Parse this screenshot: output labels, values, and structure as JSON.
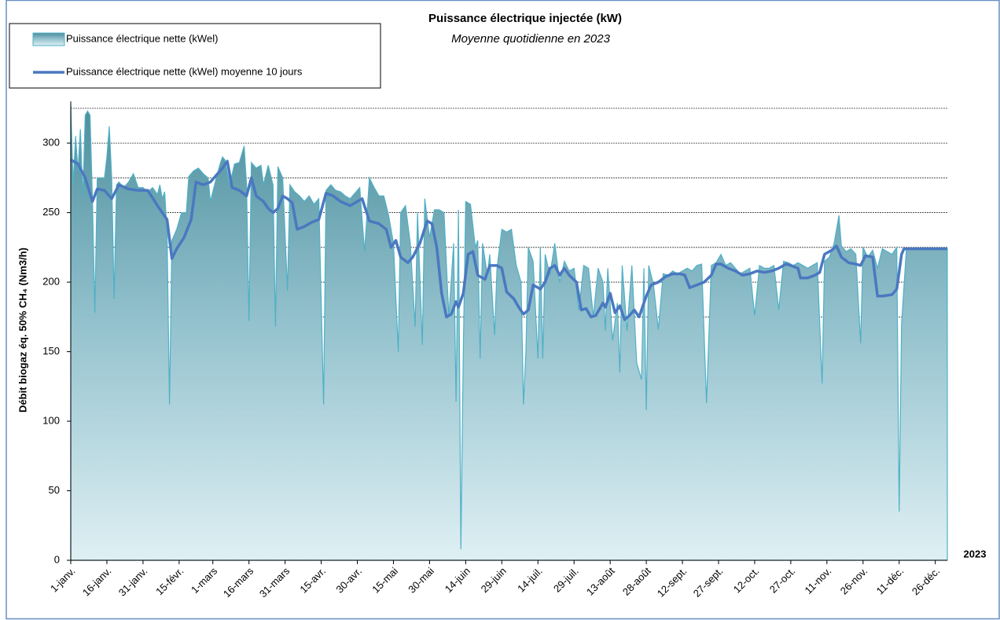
{
  "chart_data": {
    "type": "area",
    "title": "Puissance électrique injectée (kW)",
    "subtitle": "Moyenne quotidienne en 2023",
    "y_label": "Débit biogaz éq. 50% CH₄ (Nm3/h)",
    "x_label": "2023",
    "legend": "top-left",
    "ylim": [
      0,
      330
    ],
    "yticks": [
      0,
      50,
      100,
      150,
      200,
      250,
      300
    ],
    "gridlines": [
      175,
      200,
      225,
      250,
      275,
      300,
      325
    ],
    "xlim": [
      0,
      364
    ],
    "xticks": [
      {
        "value": 0,
        "label": "1-janv."
      },
      {
        "value": 15,
        "label": "16-janv."
      },
      {
        "value": 30,
        "label": "31-janv."
      },
      {
        "value": 45,
        "label": "15-févr."
      },
      {
        "value": 59,
        "label": "1-mars"
      },
      {
        "value": 74,
        "label": "16-mars"
      },
      {
        "value": 89,
        "label": "31-mars"
      },
      {
        "value": 104,
        "label": "15-avr."
      },
      {
        "value": 119,
        "label": "30-avr."
      },
      {
        "value": 134,
        "label": "15-mai"
      },
      {
        "value": 149,
        "label": "30-mai"
      },
      {
        "value": 164,
        "label": "14-juin"
      },
      {
        "value": 179,
        "label": "29-juin"
      },
      {
        "value": 194,
        "label": "14-juil."
      },
      {
        "value": 209,
        "label": "29-juil."
      },
      {
        "value": 224,
        "label": "13-août"
      },
      {
        "value": 239,
        "label": "28-août"
      },
      {
        "value": 254,
        "label": "12-sept."
      },
      {
        "value": 269,
        "label": "27-sept."
      },
      {
        "value": 284,
        "label": "12-oct."
      },
      {
        "value": 299,
        "label": "27-oct."
      },
      {
        "value": 314,
        "label": "11-nov."
      },
      {
        "value": 329,
        "label": "26-nov."
      },
      {
        "value": 344,
        "label": "11-déc."
      },
      {
        "value": 359,
        "label": "26-déc."
      }
    ],
    "series": [
      {
        "name": "Puissance électrique nette (kWel)",
        "kind": "area",
        "color": "#4fb0c6",
        "x": [
          0,
          1,
          2,
          3,
          4,
          5,
          6,
          7,
          8,
          9,
          10,
          11,
          12,
          13,
          14,
          15,
          16,
          17,
          18,
          19,
          20,
          22,
          24,
          26,
          28,
          30,
          32,
          34,
          36,
          37,
          38,
          39,
          40,
          41,
          42,
          44,
          46,
          48,
          49,
          51,
          53,
          55,
          57,
          58,
          60,
          62,
          63,
          64,
          66,
          68,
          70,
          72,
          73,
          74,
          75,
          77,
          79,
          80,
          82,
          84,
          85,
          86,
          88,
          90,
          91,
          93,
          95,
          97,
          99,
          101,
          103,
          105,
          106,
          108,
          110,
          112,
          114,
          116,
          118,
          120,
          122,
          124,
          126,
          128,
          130,
          132,
          134,
          136,
          137,
          139,
          141,
          143,
          144,
          146,
          147,
          149,
          151,
          153,
          155,
          157,
          159,
          160,
          161,
          162,
          163,
          164,
          166,
          168,
          169,
          170,
          171,
          173,
          174,
          176,
          177,
          179,
          181,
          183,
          185,
          187,
          188,
          189,
          190,
          192,
          194,
          195,
          196,
          197,
          199,
          201,
          203,
          205,
          207,
          209,
          211,
          213,
          215,
          217,
          219,
          221,
          222,
          223,
          225,
          227,
          228,
          229,
          231,
          233,
          235,
          237,
          238,
          239,
          240,
          242,
          244,
          246,
          248,
          250,
          252,
          254,
          256,
          258,
          260,
          262,
          264,
          266,
          268,
          270,
          272,
          274,
          276,
          278,
          280,
          282,
          284,
          286,
          288,
          290,
          292,
          294,
          296,
          298,
          300,
          302,
          304,
          306,
          308,
          310,
          312,
          313,
          315,
          317,
          319,
          320,
          322,
          324,
          326,
          328,
          329,
          331,
          333,
          335,
          337,
          339,
          341,
          343,
          344,
          345,
          347,
          350,
          364
        ],
        "values": [
          328,
          270,
          305,
          280,
          310,
          260,
          320,
          323,
          320,
          260,
          178,
          275,
          275,
          275,
          275,
          290,
          312,
          275,
          188,
          270,
          272,
          268,
          272,
          278,
          268,
          268,
          265,
          268,
          263,
          270,
          260,
          265,
          235,
          112,
          230,
          238,
          250,
          250,
          276,
          280,
          282,
          278,
          275,
          258,
          272,
          285,
          290,
          288,
          270,
          285,
          286,
          298,
          270,
          172,
          286,
          282,
          284,
          270,
          284,
          270,
          168,
          283,
          275,
          194,
          270,
          265,
          262,
          258,
          262,
          256,
          260,
          112,
          266,
          270,
          266,
          265,
          262,
          260,
          264,
          268,
          222,
          275,
          268,
          262,
          262,
          248,
          228,
          150,
          250,
          255,
          228,
          168,
          250,
          155,
          260,
          232,
          252,
          252,
          250,
          175,
          228,
          114,
          252,
          8,
          150,
          258,
          256,
          225,
          230,
          145,
          228,
          205,
          220,
          162,
          210,
          238,
          236,
          238,
          212,
          200,
          112,
          150,
          225,
          215,
          145,
          225,
          145,
          220,
          205,
          228,
          200,
          215,
          208,
          210,
          180,
          212,
          210,
          175,
          210,
          200,
          165,
          210,
          158,
          185,
          135,
          212,
          165,
          212,
          142,
          130,
          210,
          108,
          212,
          198,
          166,
          206,
          205,
          208,
          206,
          208,
          210,
          208,
          212,
          213,
          113,
          212,
          214,
          220,
          212,
          214,
          210,
          206,
          208,
          210,
          176,
          212,
          210,
          210,
          212,
          180,
          215,
          214,
          212,
          214,
          212,
          210,
          212,
          214,
          127,
          215,
          218,
          228,
          248,
          226,
          222,
          224,
          220,
          156,
          225,
          218,
          223,
          210,
          224,
          222,
          220,
          225,
          35,
          170,
          224,
          224,
          224
        ]
      },
      {
        "name": "Puissance électrique nette (kWel) moyenne 10 jours",
        "kind": "line",
        "color": "#4a78c0",
        "x": [
          0,
          3,
          6,
          9,
          11,
          14,
          17,
          20,
          24,
          28,
          32,
          36,
          40,
          42,
          44,
          47,
          50,
          52,
          55,
          58,
          61,
          63,
          65,
          67,
          70,
          73,
          75,
          77,
          80,
          82,
          84,
          86,
          88,
          90,
          92,
          94,
          97,
          100,
          103,
          106,
          109,
          112,
          116,
          118,
          121,
          124,
          128,
          131,
          133,
          135,
          137,
          140,
          142,
          145,
          148,
          150,
          152,
          154,
          156,
          158,
          160,
          161,
          163,
          165,
          167,
          169,
          172,
          174,
          177,
          179,
          181,
          184,
          186,
          188,
          190,
          192,
          195,
          197,
          199,
          201,
          203,
          205,
          207,
          210,
          212,
          214,
          216,
          218,
          221,
          222,
          224,
          226,
          228,
          230,
          232,
          234,
          236,
          239,
          241,
          244,
          247,
          250,
          253,
          255,
          257,
          260,
          263,
          266,
          268,
          270,
          273,
          276,
          279,
          282,
          285,
          288,
          291,
          294,
          297,
          299,
          302,
          303,
          306,
          309,
          311,
          313,
          316,
          318,
          320,
          323,
          326,
          328,
          330,
          333,
          335,
          337,
          341,
          343,
          345,
          346,
          364
        ],
        "values": [
          288,
          285,
          275,
          258,
          267,
          266,
          260,
          270,
          267,
          266,
          266,
          255,
          245,
          217,
          224,
          232,
          245,
          272,
          270,
          272,
          278,
          282,
          287,
          268,
          266,
          262,
          275,
          262,
          258,
          253,
          250,
          253,
          262,
          260,
          257,
          238,
          240,
          243,
          245,
          264,
          262,
          258,
          255,
          257,
          260,
          244,
          242,
          238,
          225,
          230,
          218,
          214,
          218,
          228,
          244,
          242,
          225,
          192,
          175,
          177,
          186,
          182,
          192,
          220,
          222,
          205,
          202,
          212,
          212,
          210,
          193,
          188,
          182,
          177,
          180,
          198,
          195,
          200,
          210,
          212,
          205,
          210,
          205,
          200,
          180,
          181,
          175,
          176,
          185,
          182,
          192,
          178,
          183,
          173,
          176,
          180,
          175,
          190,
          198,
          200,
          204,
          206,
          206,
          205,
          196,
          198,
          200,
          205,
          213,
          213,
          210,
          208,
          205,
          206,
          208,
          207,
          208,
          210,
          213,
          212,
          210,
          203,
          203,
          205,
          207,
          220,
          223,
          226,
          218,
          214,
          213,
          212,
          219,
          218,
          190,
          190,
          191,
          195,
          220,
          224,
          224
        ]
      }
    ]
  }
}
